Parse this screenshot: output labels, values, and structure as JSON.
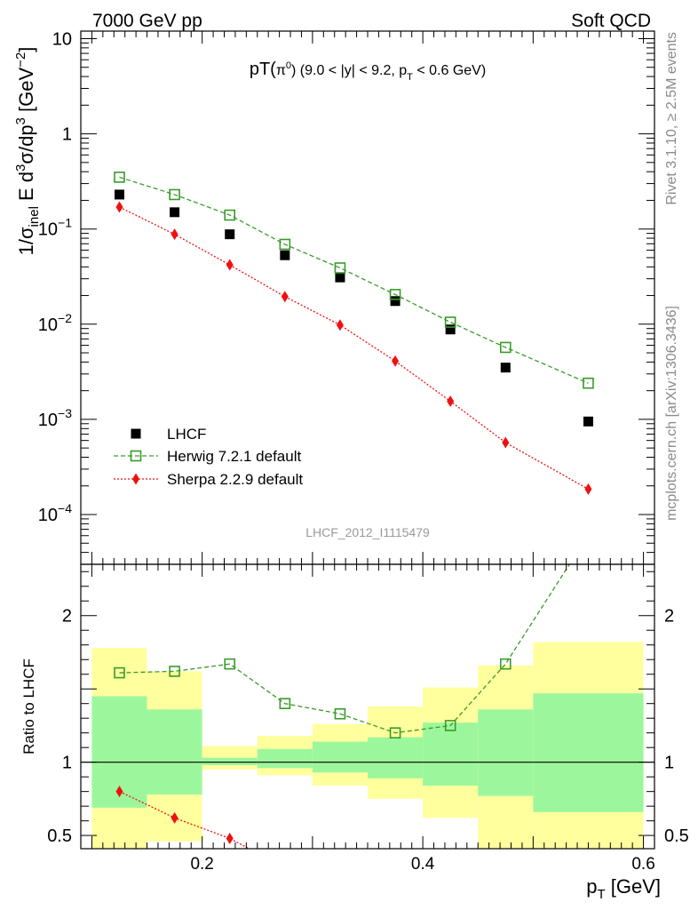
{
  "header": {
    "left": "7000 GeV pp",
    "right": "Soft QCD",
    "rivet": "Rivet 3.1.10, ≥ 2.5M events",
    "site": "mcplots.cern.ch [arXiv:1306.3436]",
    "analysis": "LHCF_2012_I1115479"
  },
  "chart_data": [
    {
      "type": "scatter",
      "panel": "main",
      "title": {
        "a": "pT(",
        "b": "π",
        "c": "0",
        "d": ") (9.0 < |y| < 9.2, p",
        "e": "T",
        "f": " < 0.6 GeV)"
      },
      "ylabel": {
        "a": "1/σ",
        "b": "inel",
        "c": " E d",
        "d": "3",
        "e": "σ/dp",
        "f": "3",
        "g": " [GeV",
        "h": "−2",
        "i": "]"
      },
      "yscale": "log",
      "xlim": [
        0.09,
        0.61
      ],
      "ylim": [
        3e-05,
        12
      ],
      "yticks": [
        {
          "v": 10,
          "text": "10"
        },
        {
          "v": 1,
          "text": "1"
        },
        {
          "v": 0.1,
          "b": "10",
          "e": "−1"
        },
        {
          "v": 0.01,
          "b": "10",
          "e": "−2"
        },
        {
          "v": 0.001,
          "b": "10",
          "e": "−3"
        },
        {
          "v": 0.0001,
          "b": "10",
          "e": "−4"
        }
      ],
      "legend_position": "bottom-left",
      "series": [
        {
          "name": "LHCF",
          "color": "#000000",
          "marker": "square-filled",
          "x": [
            0.125,
            0.175,
            0.225,
            0.275,
            0.325,
            0.375,
            0.425,
            0.475,
            0.55
          ],
          "y": [
            0.23,
            0.15,
            0.088,
            0.053,
            0.031,
            0.0175,
            0.0088,
            0.0035,
            0.00095
          ]
        },
        {
          "name": "Herwig 7.2.1 default",
          "color": "#3a9a2a",
          "marker": "square-open",
          "line": "dashed",
          "x": [
            0.125,
            0.175,
            0.225,
            0.275,
            0.325,
            0.375,
            0.425,
            0.475,
            0.55
          ],
          "y": [
            0.35,
            0.23,
            0.14,
            0.069,
            0.039,
            0.0205,
            0.0105,
            0.0057,
            0.0024
          ]
        },
        {
          "name": "Sherpa 2.2.9 default",
          "color": "#ee1111",
          "marker": "diamond",
          "line": "dotted",
          "x": [
            0.125,
            0.175,
            0.225,
            0.275,
            0.325,
            0.375,
            0.425,
            0.475,
            0.55
          ],
          "y": [
            0.17,
            0.088,
            0.042,
            0.0195,
            0.0098,
            0.0041,
            0.00155,
            0.00057,
            0.000185
          ]
        }
      ]
    },
    {
      "type": "scatter",
      "panel": "ratio",
      "ylabel": "Ratio to LHCF",
      "xlabel": {
        "a": "p",
        "b": "T",
        "c": " [GeV]"
      },
      "xlim": [
        0.09,
        0.61
      ],
      "ylim": [
        0.41,
        2.35
      ],
      "xticks": [
        {
          "v": 0.2,
          "text": "0.2"
        },
        {
          "v": 0.4,
          "text": "0.4"
        },
        {
          "v": 0.6,
          "text": "0.6"
        }
      ],
      "yticks": [
        {
          "v": 0.5,
          "text": "0.5"
        },
        {
          "v": 1,
          "text": "1"
        },
        {
          "v": 2,
          "text": "2"
        }
      ],
      "bands": [
        {
          "x0": 0.1,
          "x1": 0.15,
          "stat": [
            0.69,
            1.45
          ],
          "total": [
            0.41,
            1.78
          ]
        },
        {
          "x0": 0.15,
          "x1": 0.2,
          "stat": [
            0.78,
            1.36
          ],
          "total": [
            0.46,
            1.62
          ]
        },
        {
          "x0": 0.2,
          "x1": 0.25,
          "stat": [
            0.98,
            1.03
          ],
          "total": [
            0.95,
            1.11
          ]
        },
        {
          "x0": 0.25,
          "x1": 0.3,
          "stat": [
            0.96,
            1.09
          ],
          "total": [
            0.91,
            1.18
          ]
        },
        {
          "x0": 0.3,
          "x1": 0.35,
          "stat": [
            0.93,
            1.14
          ],
          "total": [
            0.84,
            1.26
          ]
        },
        {
          "x0": 0.35,
          "x1": 0.4,
          "stat": [
            0.89,
            1.17
          ],
          "total": [
            0.75,
            1.38
          ]
        },
        {
          "x0": 0.4,
          "x1": 0.45,
          "stat": [
            0.84,
            1.27
          ],
          "total": [
            0.62,
            1.51
          ]
        },
        {
          "x0": 0.45,
          "x1": 0.5,
          "stat": [
            0.77,
            1.36
          ],
          "total": [
            0.41,
            1.66
          ]
        },
        {
          "x0": 0.5,
          "x1": 0.6,
          "stat": [
            0.66,
            1.47
          ],
          "total": [
            0.41,
            1.82
          ]
        }
      ],
      "series": [
        {
          "name": "Herwig 7.2.1 default",
          "color": "#3a9a2a",
          "marker": "square-open",
          "line": "dashed",
          "x": [
            0.125,
            0.175,
            0.225,
            0.275,
            0.325,
            0.375,
            0.425,
            0.475
          ],
          "y": [
            1.61,
            1.62,
            1.67,
            1.4,
            1.33,
            1.2,
            1.25,
            1.67
          ]
        },
        {
          "name": "Sherpa 2.2.9 default",
          "color": "#ee1111",
          "marker": "diamond",
          "line": "dotted",
          "x": [
            0.125,
            0.175,
            0.225
          ],
          "y": [
            0.8,
            0.62,
            0.48
          ]
        }
      ]
    }
  ]
}
